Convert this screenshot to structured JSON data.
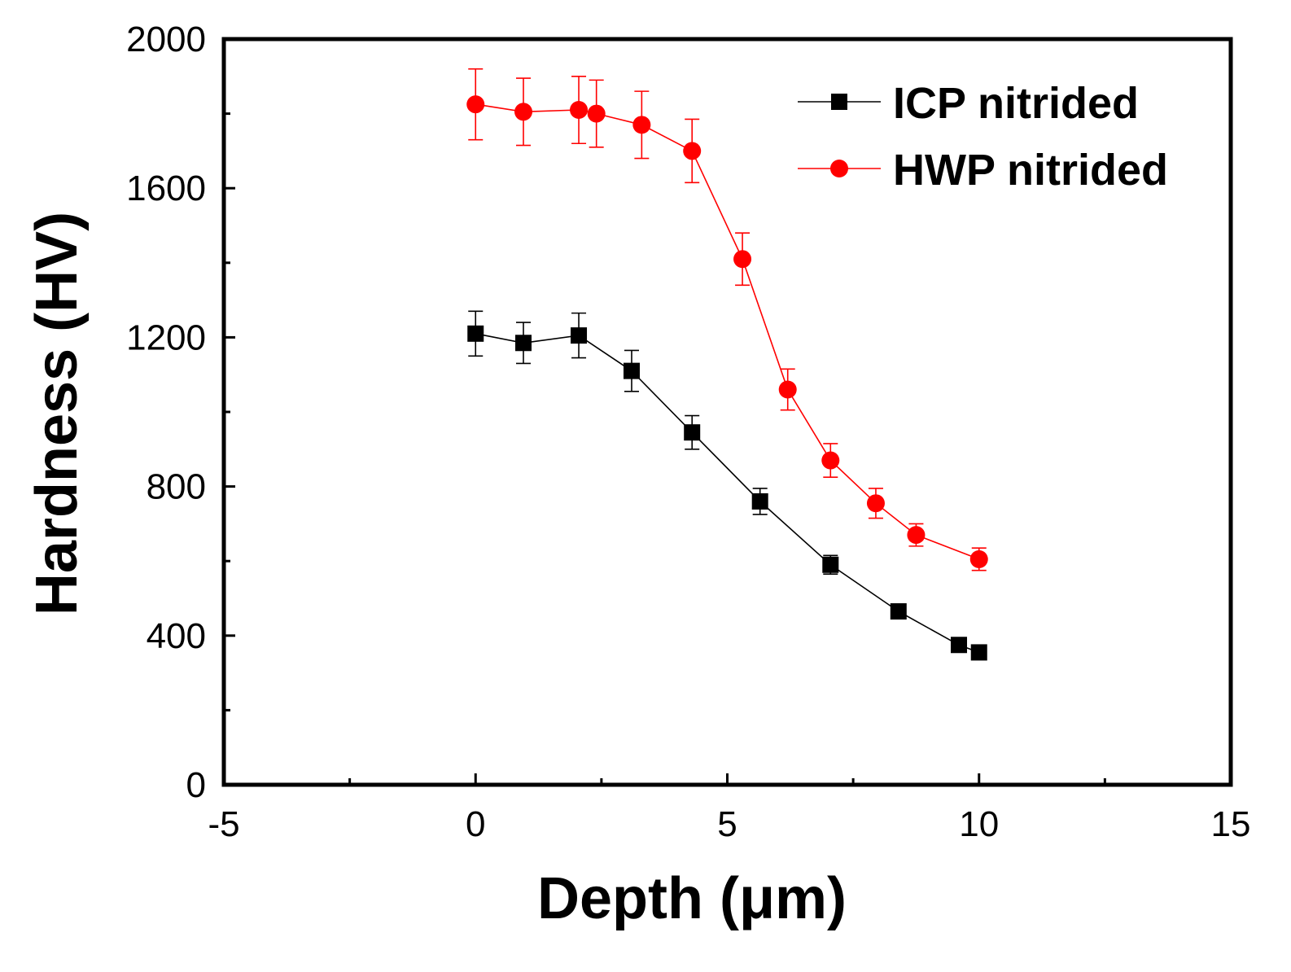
{
  "chart_data": {
    "type": "line",
    "title": "",
    "xlabel": "Depth (μm)",
    "ylabel": "Hardness (HV)",
    "xlim": [
      -5,
      15
    ],
    "ylim": [
      0,
      2000
    ],
    "x_ticks": [
      -5,
      0,
      5,
      10,
      15
    ],
    "x_tick_labels": [
      "-5",
      "0",
      "5",
      "10",
      "15"
    ],
    "y_ticks": [
      0,
      400,
      800,
      1200,
      1600,
      2000
    ],
    "y_tick_labels": [
      "0",
      "400",
      "800",
      "1200",
      "1600",
      "2000"
    ],
    "grid": false,
    "legend_position": "top-right",
    "series": [
      {
        "name": "ICP nitrided",
        "color": "#000000",
        "marker": "square",
        "x": [
          0,
          0.95,
          2.05,
          3.1,
          4.3,
          5.65,
          7.05,
          8.4,
          9.6,
          10.0
        ],
        "y": [
          1210,
          1185,
          1205,
          1110,
          945,
          760,
          590,
          465,
          375,
          355
        ],
        "error": [
          60,
          55,
          60,
          55,
          45,
          35,
          25,
          0,
          0,
          0
        ]
      },
      {
        "name": "HWP nitrided",
        "color": "#ff0000",
        "marker": "circle",
        "x": [
          0,
          0.95,
          2.05,
          2.4,
          3.3,
          4.3,
          5.3,
          6.2,
          7.05,
          7.95,
          8.75,
          10.0
        ],
        "y": [
          1825,
          1805,
          1810,
          1800,
          1770,
          1700,
          1410,
          1060,
          870,
          755,
          670,
          605
        ],
        "error": [
          95,
          90,
          90,
          90,
          90,
          85,
          70,
          55,
          45,
          40,
          30,
          30
        ]
      }
    ]
  }
}
